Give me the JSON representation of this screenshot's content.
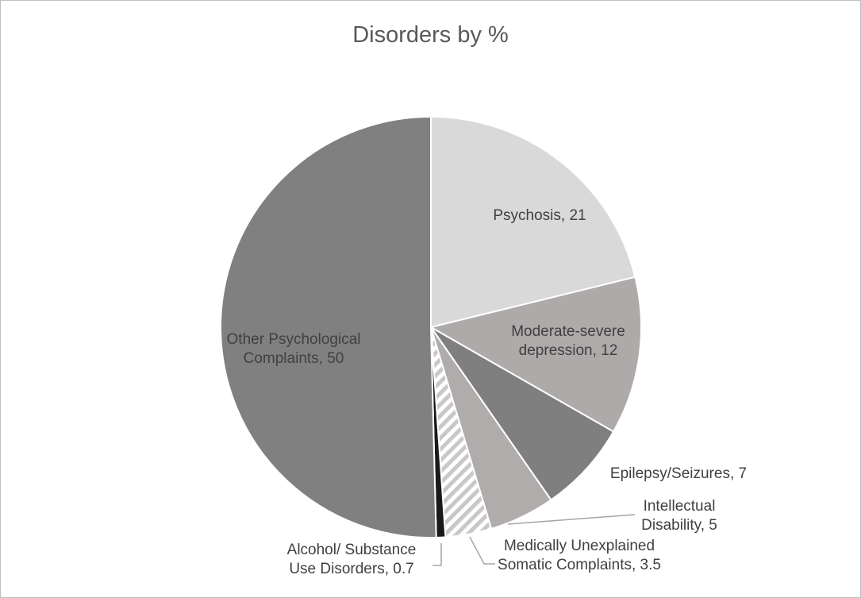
{
  "chart_data": {
    "type": "pie",
    "title": "Disorders by %",
    "categories": [
      "Psychosis",
      "Moderate-severe depression",
      "Epilepsy/Seizures",
      "Intellectual Disability",
      "Medically Unexplained Somatic Complaints",
      "Alcohol/ Substance Use Disorders",
      "Other Psychological Complaints"
    ],
    "values": [
      21,
      12,
      7,
      5,
      3.5,
      0.7,
      50
    ],
    "value_labels": [
      "Psychosis, 21",
      "Moderate-severe depression, 12",
      "Epilepsy/Seizures, 7",
      "Intellectual Disability, 5",
      "Medically Unexplained Somatic Complaints, 3.5",
      "Alcohol/ Substance Use Disorders, 0.7",
      "Other Psychological Complaints, 50"
    ],
    "colors": [
      "#d9d9d9",
      "#aeaaaa",
      "#7f7f7f",
      "#b0acab",
      "hatch",
      "#1a1a1a",
      "#808080"
    ]
  }
}
